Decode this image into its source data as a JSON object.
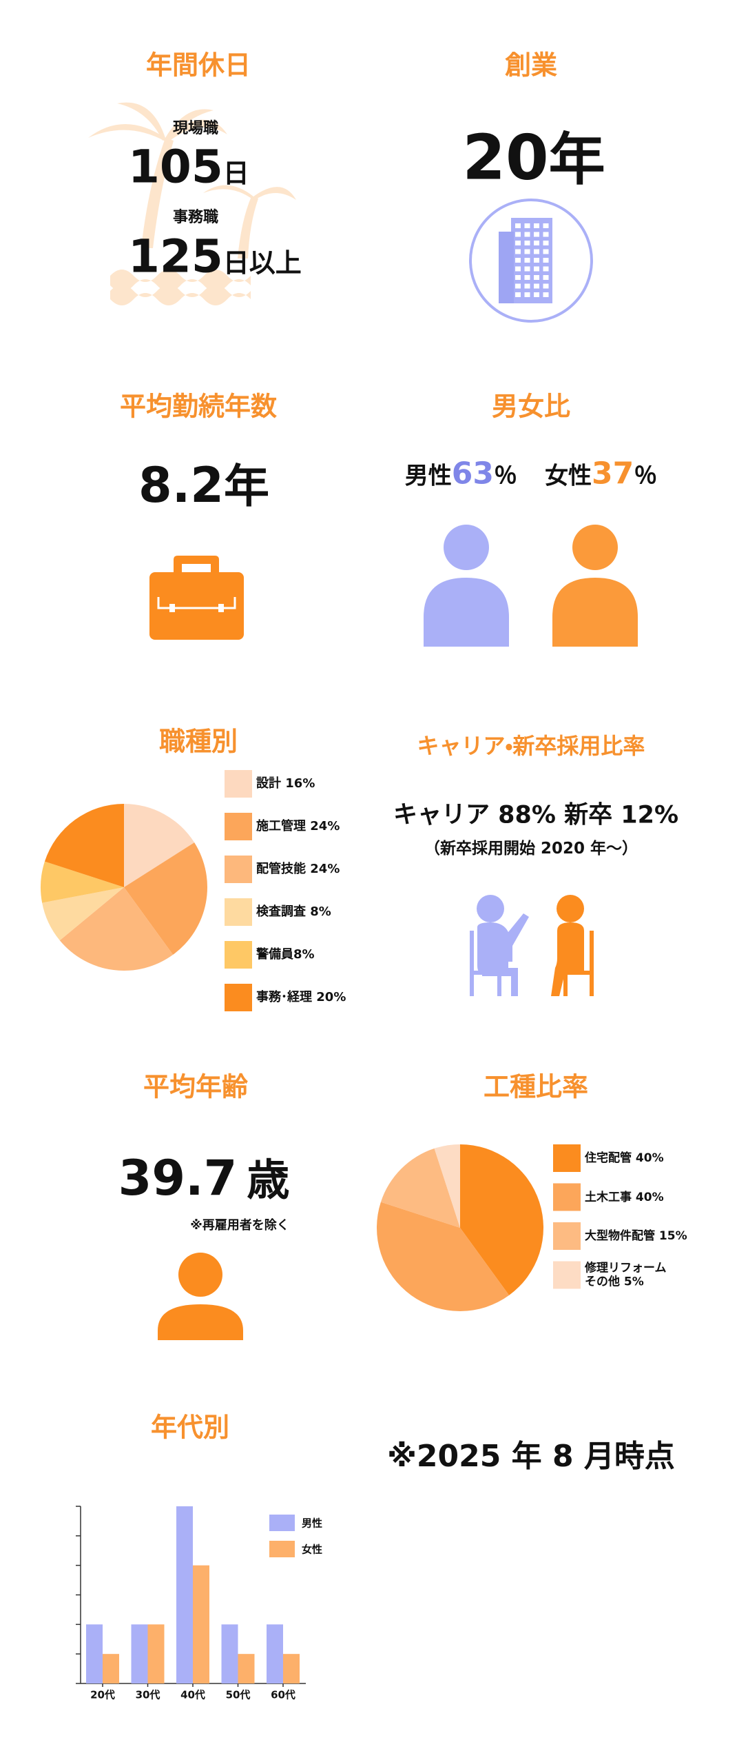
{
  "sections": {
    "holidays": {
      "title": "年間休日",
      "site_label": "現場職",
      "site_value": "105",
      "site_unit": "日",
      "office_label": "事務職",
      "office_value": "125",
      "office_unit": "日以上"
    },
    "founding": {
      "title": "創業",
      "value": "20",
      "unit": "年"
    },
    "tenure": {
      "title": "平均勤続年数",
      "value": "8.2",
      "unit": "年"
    },
    "gender": {
      "title": "男女比",
      "male_label": "男性",
      "male_value": "63",
      "male_unit": "％",
      "female_label": "女性",
      "female_value": "37",
      "female_unit": "％"
    },
    "career": {
      "title": "キャリア・新卒採用比率",
      "ratio": "キャリア 88% 新卒 12%",
      "note": "（新卒採用開始 2020 年〜）"
    },
    "age": {
      "title": "平均年齢",
      "value": "39.7",
      "unit": "歳",
      "note": "※再雇用者を除く"
    },
    "as_of": "※2025 年 8 月時点"
  },
  "chart_data": [
    {
      "type": "pie",
      "title": "職種別",
      "categories": [
        "設計 16%",
        "施工管理 24%",
        "配管技能 24%",
        "検査調査 8%",
        "警備員8%",
        "事務･経理 20%"
      ],
      "values": [
        16,
        24,
        24,
        8,
        8,
        20
      ],
      "colors": [
        "#fdd9bf",
        "#fca65a",
        "#fdb87c",
        "#fedaa0",
        "#fec865",
        "#fb8c1f"
      ]
    },
    {
      "type": "pie",
      "title": "工種比率",
      "categories": [
        "住宅配管 40%",
        "土木工事 40%",
        "大型物件配管 15%",
        "修理リフォーム\nその他 5%"
      ],
      "values": [
        40,
        40,
        15,
        5
      ],
      "colors": [
        "#fb8c1f",
        "#fca65a",
        "#fdbb82",
        "#fddcc4"
      ]
    },
    {
      "type": "bar",
      "title": "年代別",
      "categories": [
        "20代",
        "30代",
        "40代",
        "50代",
        "60代"
      ],
      "series": [
        {
          "name": "男性",
          "color": "#aab0f7",
          "values": [
            2,
            2,
            6,
            2,
            2
          ]
        },
        {
          "name": "女性",
          "color": "#fdb06a",
          "values": [
            1,
            2,
            4,
            1,
            1
          ]
        }
      ],
      "ylim": [
        0,
        6
      ],
      "yticks": [
        0,
        1,
        2,
        3,
        4,
        5,
        6
      ]
    }
  ]
}
